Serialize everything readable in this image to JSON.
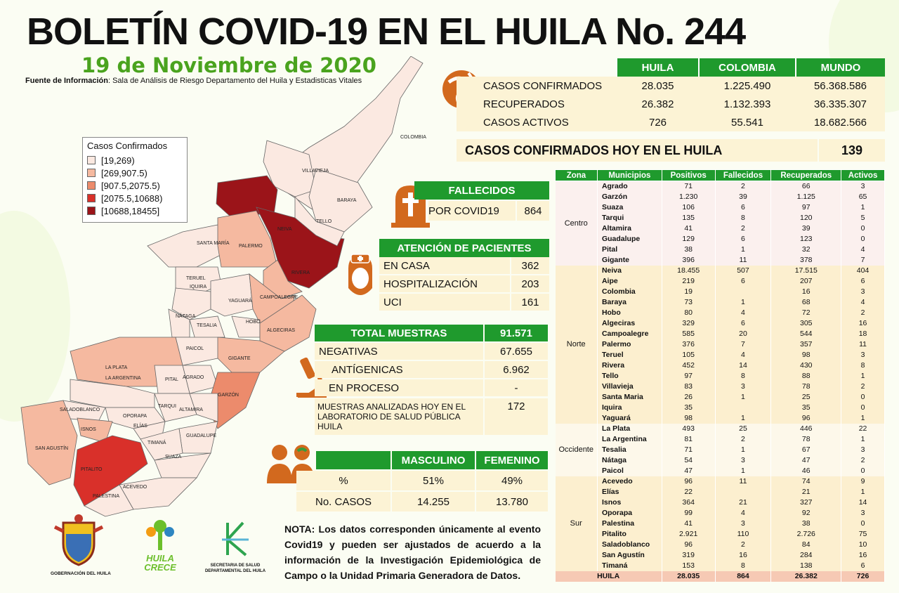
{
  "header": {
    "title": "BOLETÍN COVID-19 EN EL HUILA No. 244",
    "date": "19 de Noviembre de 2020",
    "source_label": "Fuente de Información",
    "source_text": ": Sala de Análisis de Riesgo Departamento del Huila y Estadisticas Vitales"
  },
  "legend": {
    "title": "Casos Confirmados",
    "items": [
      {
        "label": "[19,269)",
        "color": "#fbe9e1"
      },
      {
        "label": "[269,907.5)",
        "color": "#f5b9a0"
      },
      {
        "label": "[907.5,2075.5)",
        "color": "#ec8b6c"
      },
      {
        "label": "[2075.5,10688)",
        "color": "#d9302a"
      },
      {
        "label": "[10688,18455]",
        "color": "#9b1419"
      }
    ]
  },
  "map_labels": [
    "COLOMBIA",
    "VILLAVIEJA",
    "BARAYA",
    "NEIVA",
    "TELLO",
    "SANTA MARÍA",
    "PALERMO",
    "TERUEL",
    "RIVERA",
    "IQUIRA",
    "CAMPOALEGRE",
    "YAGUARÁ",
    "HOBO",
    "NÁTAGA",
    "TESALIA",
    "ALGECIRAS",
    "PAICOL",
    "GIGANTE",
    "LA PLATA",
    "AGRADO",
    "PITAL",
    "GARZÓN",
    "LA ARGENTINA",
    "SALADOBLANCO",
    "TARQUI",
    "OPORAPA",
    "ISNOS",
    "ELÍAS",
    "ALTAMIRA",
    "SAN AGUSTÍN",
    "TIMANÁ",
    "GUADALUPE",
    "SUAZA",
    "PITALITO",
    "ACEVEDO",
    "PALESTINA"
  ],
  "summary": {
    "headers": [
      "HUILA",
      "COLOMBIA",
      "MUNDO"
    ],
    "rows": [
      {
        "label": "CASOS CONFIRMADOS",
        "values": [
          "28.035",
          "1.225.490",
          "56.368.586"
        ]
      },
      {
        "label": "RECUPERADOS",
        "values": [
          "26.382",
          "1.132.393",
          "36.335.307"
        ]
      },
      {
        "label": "CASOS ACTIVOS",
        "values": [
          "726",
          "55.541",
          "18.682.566"
        ]
      }
    ],
    "today_label": "CASOS CONFIRMADOS  HOY EN EL HUILA",
    "today_value": "139"
  },
  "fallecidos": {
    "title": "FALLECIDOS",
    "label": "POR COVID19",
    "value": "864"
  },
  "atencion": {
    "title": "ATENCIÓN DE PACIENTES",
    "rows": [
      {
        "label": "EN CASA",
        "value": "362"
      },
      {
        "label": "HOSPITALIZACIÓN",
        "value": "203"
      },
      {
        "label": "UCI",
        "value": "161"
      }
    ]
  },
  "muestras": {
    "title": "TOTAL MUESTRAS",
    "total": "91.571",
    "rows": [
      {
        "label": "NEGATIVAS",
        "value": "67.655"
      },
      {
        "label": "ANTÍGENICAS",
        "value": "6.962"
      },
      {
        "label": "EN PROCESO",
        "value": "-"
      }
    ],
    "lab_label": "MUESTRAS ANALIZADAS HOY EN EL LABORATORIO DE SALUD PÚBLICA HUILA",
    "lab_value": "172"
  },
  "sexo": {
    "headers": [
      "MASCULINO",
      "FEMENINO"
    ],
    "rows": [
      {
        "label": "%",
        "values": [
          "51%",
          "49%"
        ]
      },
      {
        "label": "No. CASOS",
        "values": [
          "14.255",
          "13.780"
        ]
      }
    ]
  },
  "muni_table": {
    "headers": [
      "Zona",
      "Municipios",
      "Positivos",
      "Fallecidos",
      "Recuperados",
      "Activos"
    ],
    "zones": [
      {
        "name": "Centro",
        "cls": "z1",
        "rows": [
          [
            "Agrado",
            "71",
            "2",
            "66",
            "3"
          ],
          [
            "Garzón",
            "1.230",
            "39",
            "1.125",
            "65"
          ],
          [
            "Suaza",
            "106",
            "6",
            "97",
            "1"
          ],
          [
            "Tarqui",
            "135",
            "8",
            "120",
            "5"
          ],
          [
            "Altamira",
            "41",
            "2",
            "39",
            "0"
          ],
          [
            "Guadalupe",
            "129",
            "6",
            "123",
            "0"
          ],
          [
            "Pital",
            "38",
            "1",
            "32",
            "4"
          ],
          [
            "Gigante",
            "396",
            "11",
            "378",
            "7"
          ]
        ]
      },
      {
        "name": "Norte",
        "cls": "z2",
        "rows": [
          [
            "Neiva",
            "18.455",
            "507",
            "17.515",
            "404"
          ],
          [
            "Aipe",
            "219",
            "6",
            "207",
            "6"
          ],
          [
            "Colombia",
            "19",
            "",
            "16",
            "3"
          ],
          [
            "Baraya",
            "73",
            "1",
            "68",
            "4"
          ],
          [
            "Hobo",
            "80",
            "4",
            "72",
            "2"
          ],
          [
            "Algeciras",
            "329",
            "6",
            "305",
            "16"
          ],
          [
            "Campoalegre",
            "585",
            "20",
            "544",
            "18"
          ],
          [
            "Palermo",
            "376",
            "7",
            "357",
            "11"
          ],
          [
            "Teruel",
            "105",
            "4",
            "98",
            "3"
          ],
          [
            "Rivera",
            "452",
            "14",
            "430",
            "8"
          ],
          [
            "Tello",
            "97",
            "8",
            "88",
            "1"
          ],
          [
            "Villavieja",
            "83",
            "3",
            "78",
            "2"
          ],
          [
            "Santa Maria",
            "26",
            "1",
            "25",
            "0"
          ],
          [
            "Iquira",
            "35",
            "",
            "35",
            "0"
          ],
          [
            "Yaguará",
            "98",
            "1",
            "96",
            "1"
          ]
        ]
      },
      {
        "name": "Occidente",
        "cls": "z3",
        "rows": [
          [
            "La Plata",
            "493",
            "25",
            "446",
            "22"
          ],
          [
            "La Argentina",
            "81",
            "2",
            "78",
            "1"
          ],
          [
            "Tesalia",
            "71",
            "1",
            "67",
            "3"
          ],
          [
            "Nátaga",
            "54",
            "3",
            "47",
            "2"
          ],
          [
            "Paicol",
            "47",
            "1",
            "46",
            "0"
          ]
        ]
      },
      {
        "name": "Sur",
        "cls": "z4",
        "rows": [
          [
            "Acevedo",
            "96",
            "11",
            "74",
            "9"
          ],
          [
            "Elías",
            "22",
            "",
            "21",
            "1"
          ],
          [
            "Isnos",
            "364",
            "21",
            "327",
            "14"
          ],
          [
            "Oporapa",
            "99",
            "4",
            "92",
            "3"
          ],
          [
            "Palestina",
            "41",
            "3",
            "38",
            "0"
          ],
          [
            "Pitalito",
            "2.921",
            "110",
            "2.726",
            "75"
          ],
          [
            "Saladoblanco",
            "96",
            "2",
            "84",
            "10"
          ],
          [
            "San Agustín",
            "319",
            "16",
            "284",
            "16"
          ],
          [
            "Timaná",
            "153",
            "8",
            "138",
            "6"
          ]
        ]
      }
    ],
    "total": [
      "HUILA",
      "28.035",
      "864",
      "26.382",
      "726"
    ]
  },
  "logos": {
    "gob": "GOBERNACIÓN DEL HUILA",
    "crece1": "HUILA",
    "crece2": "CRECE",
    "sec1": "SECRETARIA DE SALUD",
    "sec2": "DEPARTAMENTAL DEL HUILA"
  },
  "nota": "NOTA: Los datos corresponden únicamente al evento Covid19 y pueden ser ajustados de acuerdo a la información de la Investigación Epidemiológica de Campo o la Unidad Primaria Generadora de Datos.",
  "colors": {
    "green": "#1f9a2d",
    "accent_orange": "#d2691e",
    "cream": "#fcf3d5"
  }
}
